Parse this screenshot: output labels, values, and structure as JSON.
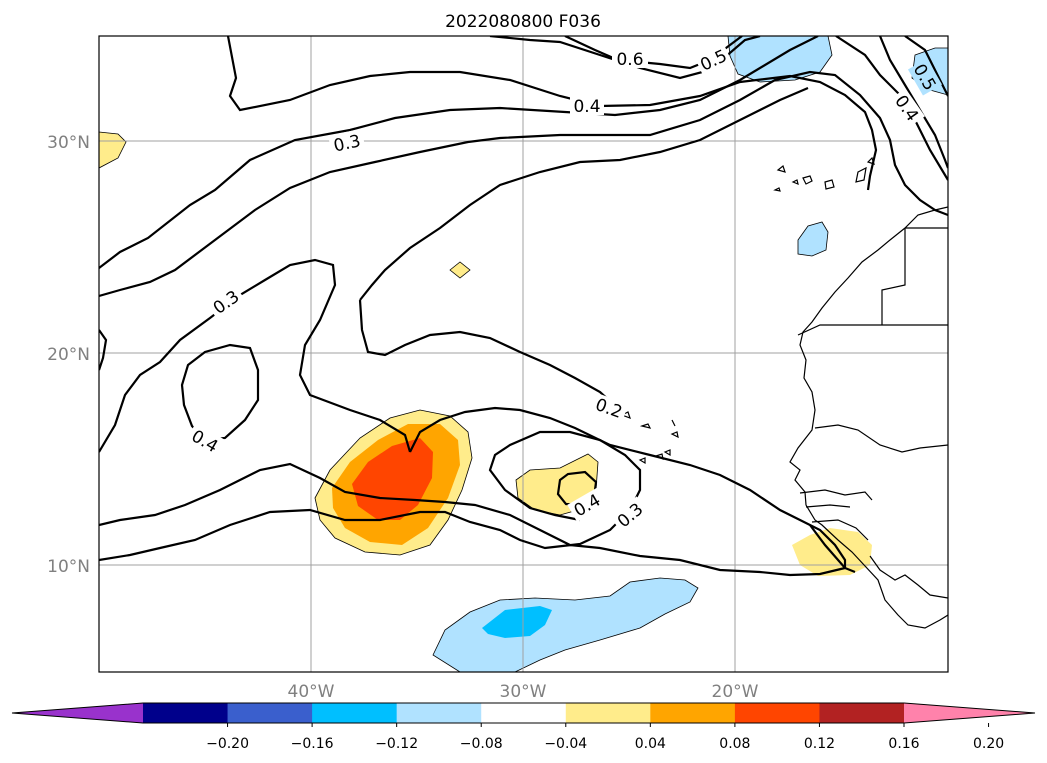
{
  "title": "2022080800 F036",
  "lat_labels": [
    "30°N",
    "20°N",
    "10°N"
  ],
  "lon_labels": [
    "40°W",
    "30°W",
    "20°W"
  ],
  "contour_labels": [
    "0.6",
    "0.5",
    "0.4",
    "0.4",
    "0.3",
    "0.3",
    "0.4",
    "0.2",
    "0.4",
    "0.3",
    "0.5"
  ],
  "colorbar": {
    "ticks": [
      "−0.20",
      "−0.16",
      "−0.12",
      "−0.08",
      "−0.04",
      "0.04",
      "0.08",
      "0.12",
      "0.16",
      "0.20"
    ],
    "colors": [
      "#9932cc",
      "#00008b",
      "#3a5fcd",
      "#00bfff",
      "#b0e2ff",
      "#ffffff",
      "#ffec8b",
      "#ffa500",
      "#ff4500",
      "#b22222",
      "#ff82ab"
    ]
  }
}
